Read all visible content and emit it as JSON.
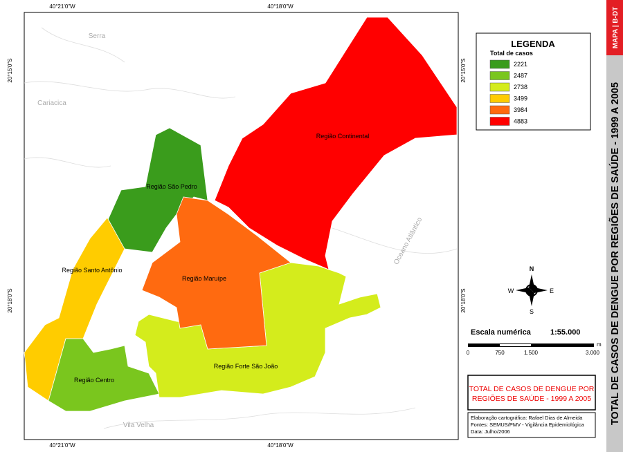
{
  "map": {
    "sidebar_tag": "MAPA | B-DT",
    "sidebar_title": "TOTAL DE CASOS DE DENGUE POR REGIÕES DE SAÚDE - 1999 A 2005",
    "coordinates": {
      "lon_left": "40°21'0\"W",
      "lon_right": "40°18'0\"W",
      "lat_top": "20°15'0\"S",
      "lat_bottom": "20°18'0\"S"
    },
    "places": [
      "Serra",
      "Cariacica",
      "Vila Velha",
      "Oceano Atlântico"
    ],
    "regions": [
      {
        "name": "Região Continental",
        "color": "#ff0000"
      },
      {
        "name": "Região São Pedro",
        "color": "#3a9c1c"
      },
      {
        "name": "Região Santo Antônio",
        "color": "#ffcc00"
      },
      {
        "name": "Região Centro",
        "color": "#7ac61e"
      },
      {
        "name": "Região Maruípe",
        "color": "#ff6a10"
      },
      {
        "name": "Região Forte São João",
        "color": "#d4ec1c"
      }
    ],
    "legend": {
      "title": "LEGENDA",
      "subtitle": "Total de casos",
      "items": [
        {
          "label": 2221,
          "color": "#3a9c1c"
        },
        {
          "label": 2487,
          "color": "#7ac61e"
        },
        {
          "label": 2738,
          "color": "#d4ec1c"
        },
        {
          "label": 3499,
          "color": "#ffcc00"
        },
        {
          "label": 3984,
          "color": "#ff6a10"
        },
        {
          "label": 4883,
          "color": "#ff0000"
        }
      ]
    },
    "compass": [
      "N",
      "S",
      "E",
      "W"
    ],
    "scale": {
      "title": "Escala numérica",
      "ratio": "1:55.000",
      "labels": [
        "0",
        "750",
        "1.500",
        "3.000"
      ],
      "unit": "m"
    },
    "title_lines": [
      "TOTAL DE CASOS DE DENGUE POR",
      "REGIÕES DE SAÚDE - 1999 A 2005"
    ],
    "credits": [
      "Elaboração cartográfica: Rafael Dias de Almeida",
      "Fontes: SEMUS/PMV - Vigilância Epidemiológica",
      "Data: Julho/2006"
    ]
  }
}
